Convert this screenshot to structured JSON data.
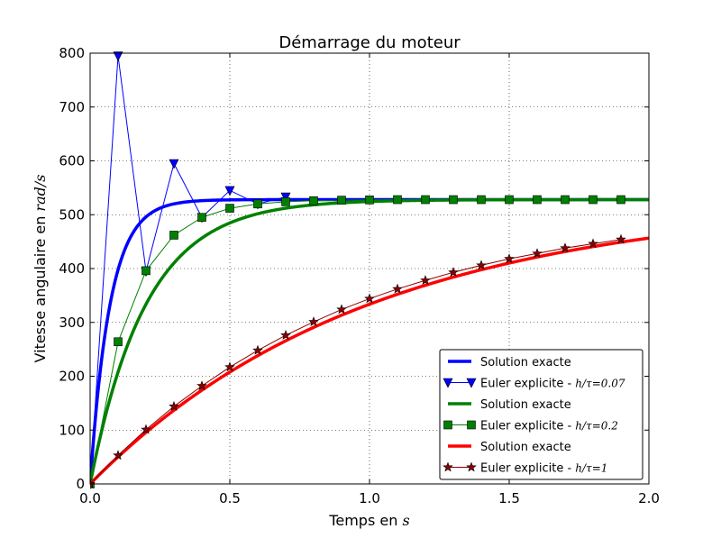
{
  "chart_data": {
    "type": "line",
    "title": "Démarrage du moteur",
    "xlabel_text": "Temps en ",
    "xlabel_math": "s",
    "ylabel_text": "Vitesse angulaire en ",
    "ylabel_math": "rad/s",
    "xlim": [
      0.0,
      2.0
    ],
    "ylim": [
      0,
      800
    ],
    "x_ticks": [
      0.0,
      0.5,
      1.0,
      1.5,
      2.0
    ],
    "x_tick_labels": [
      "0.0",
      "0.5",
      "1.0",
      "1.5",
      "2.0"
    ],
    "y_ticks": [
      0,
      100,
      200,
      300,
      400,
      500,
      600,
      700,
      800
    ],
    "y_tick_labels": [
      "0",
      "100",
      "200",
      "300",
      "400",
      "500",
      "600",
      "700",
      "800"
    ],
    "grid": true,
    "legend_position": "lower-right",
    "final_value": 528,
    "series": [
      {
        "name": "Solution exacte",
        "kind": "exact",
        "tau": 0.0714,
        "color": "#0000ff"
      },
      {
        "name_text": "Euler explicite - ",
        "name_math": "h/τ=0.07",
        "kind": "euler",
        "marker": "triangle-down",
        "color": "#0000ff",
        "x": [
          0.0,
          0.1,
          0.2,
          0.3,
          0.4,
          0.5,
          0.6,
          0.7
        ],
        "y": [
          0,
          795,
          395,
          595,
          495,
          545,
          520,
          533
        ]
      },
      {
        "name": "Solution exacte",
        "kind": "exact",
        "tau": 0.2,
        "color": "#008000"
      },
      {
        "name_text": "Euler explicite - ",
        "name_math": "h/τ=0.2",
        "kind": "euler",
        "marker": "square",
        "color": "#008000",
        "x": [
          0.0,
          0.1,
          0.2,
          0.3,
          0.4,
          0.5,
          0.6,
          0.7,
          0.8,
          0.9,
          1.0,
          1.1,
          1.2,
          1.3,
          1.4,
          1.5,
          1.6,
          1.7,
          1.8,
          1.9
        ],
        "y": [
          0,
          264,
          396,
          462,
          495,
          512,
          520,
          524,
          526,
          527,
          527.5,
          528,
          528,
          528,
          528,
          528,
          528,
          528,
          528,
          528
        ]
      },
      {
        "name": "Solution exacte",
        "kind": "exact",
        "tau": 1.0,
        "color": "#ff0000"
      },
      {
        "name_text": "Euler explicite - ",
        "name_math": "h/τ=1",
        "kind": "euler",
        "marker": "star",
        "color": "#8b0000",
        "x": [
          0.0,
          0.1,
          0.2,
          0.3,
          0.4,
          0.5,
          0.6,
          0.7,
          0.8,
          0.9,
          1.0,
          1.1,
          1.2,
          1.3,
          1.4,
          1.5,
          1.6,
          1.7,
          1.8,
          1.9
        ],
        "y": [
          0,
          53,
          101,
          144,
          182,
          217,
          248,
          276,
          301,
          324,
          344,
          362,
          378,
          393,
          406,
          418,
          428,
          438,
          446,
          454
        ]
      }
    ]
  }
}
